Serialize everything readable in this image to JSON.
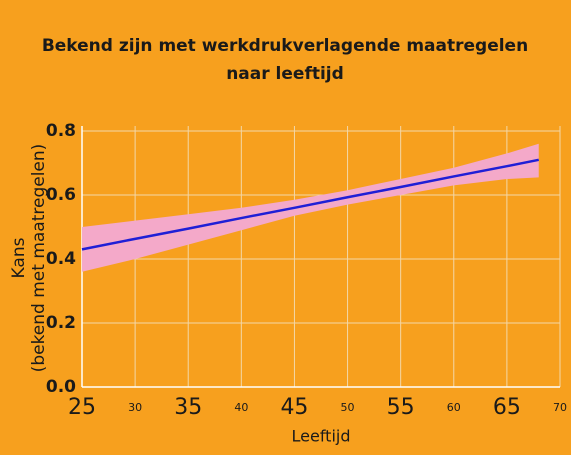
{
  "chart_data": {
    "type": "line",
    "title": [
      "Bekend zijn met werkdrukverlagende maatregelen",
      "naar leeftijd"
    ],
    "y_label": [
      "Kans",
      "(bekend met maatregelen)"
    ],
    "x_label": "Leeftijd",
    "x": [
      25,
      30,
      35,
      40,
      45,
      50,
      55,
      60,
      65,
      68
    ],
    "values": [
      0.43,
      0.463,
      0.495,
      0.528,
      0.56,
      0.593,
      0.625,
      0.658,
      0.69,
      0.71
    ],
    "upper": [
      0.5,
      0.52,
      0.54,
      0.56,
      0.585,
      0.615,
      0.65,
      0.685,
      0.73,
      0.76
    ],
    "lower": [
      0.36,
      0.4,
      0.445,
      0.49,
      0.535,
      0.57,
      0.6,
      0.63,
      0.65,
      0.655
    ],
    "color": "#1f1fd6",
    "band_color": "#f4a9c9",
    "background": "#f7a01e",
    "xlim": [
      25,
      70
    ],
    "ylim": [
      0,
      0.8
    ],
    "xticks": [
      25,
      30,
      35,
      40,
      45,
      50,
      55,
      60,
      65,
      70
    ],
    "yticks": [
      {
        "value": 0,
        "label": "0.0"
      },
      0.2,
      0.4,
      0.6,
      0.8
    ],
    "grid": true
  }
}
